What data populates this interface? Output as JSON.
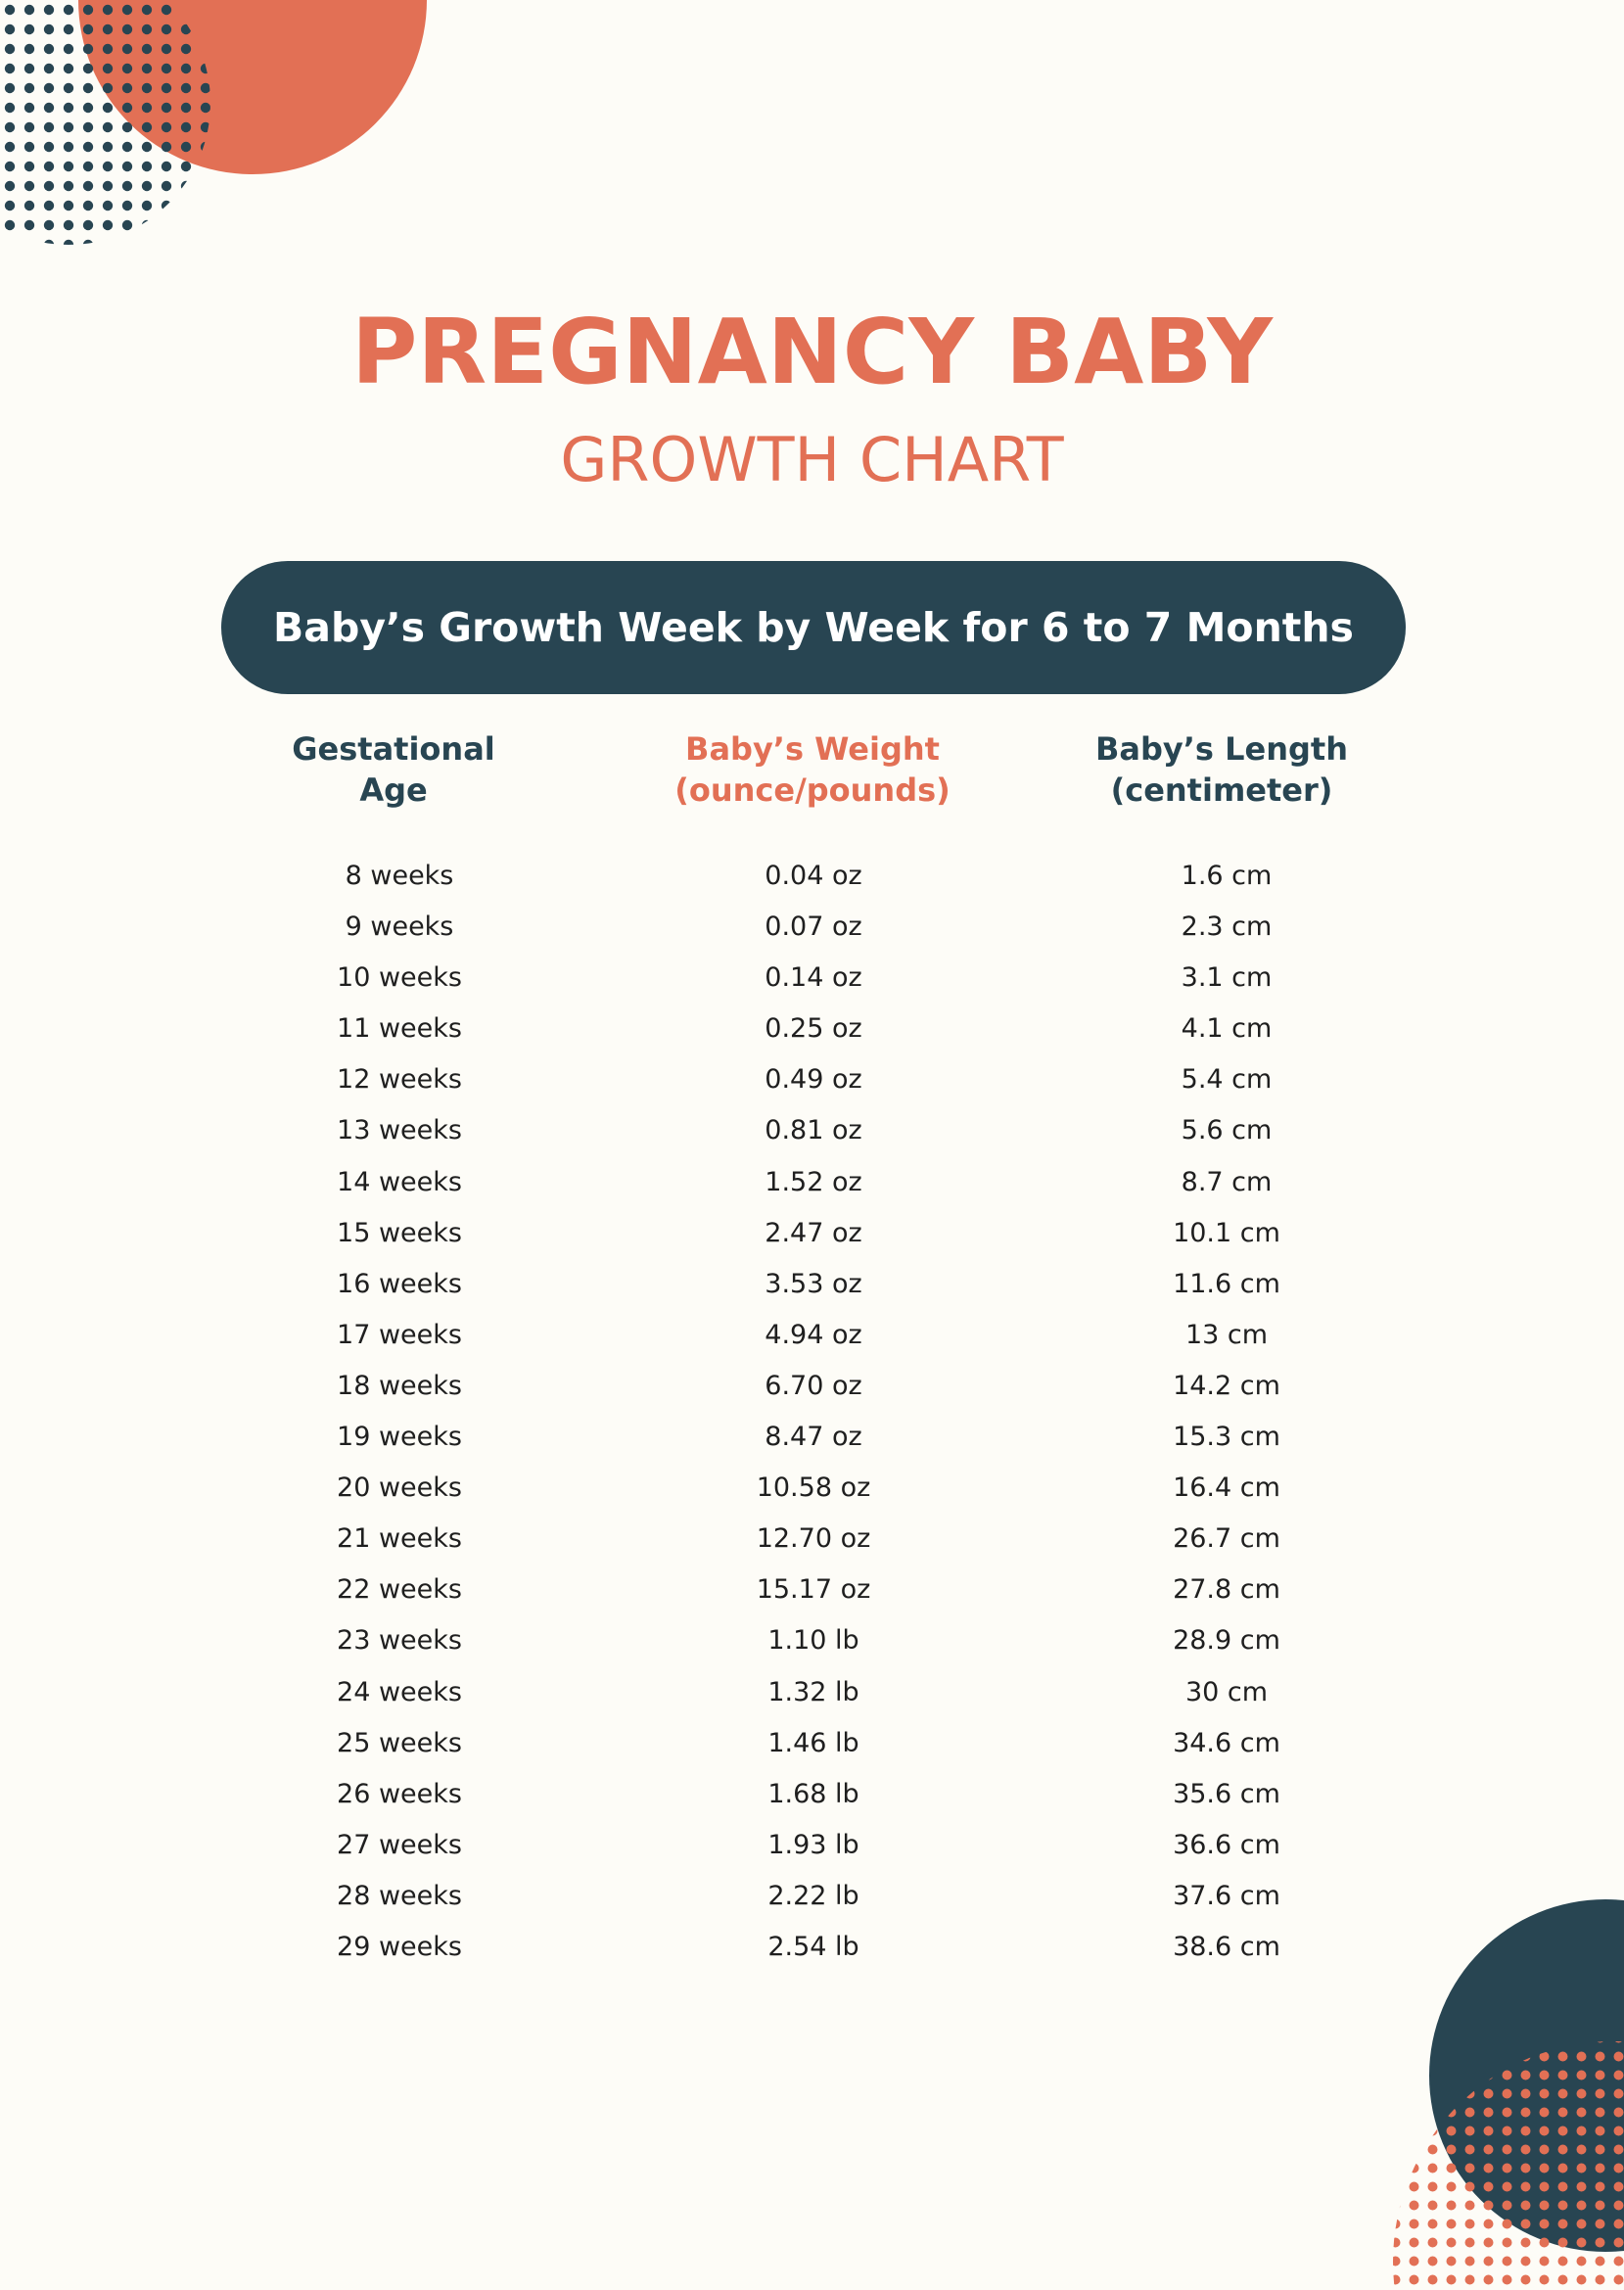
{
  "document": {
    "title": "PREGNANCY BABY",
    "subtitle": "GROWTH CHART",
    "banner": "Baby’s Growth Week by Week for 6 to 7 Months"
  },
  "colors": {
    "accent": "#e27055",
    "navy": "#284552",
    "background": "#fdfcf7"
  },
  "table": {
    "headers": [
      [
        "Gestational",
        "Age"
      ],
      [
        "Baby’s Weight",
        "(ounce/pounds)"
      ],
      [
        "Baby’s Length",
        "(centimeter)"
      ]
    ],
    "rows": [
      [
        "8 weeks",
        "0.04 oz",
        "1.6 cm"
      ],
      [
        "9 weeks",
        "0.07 oz",
        "2.3 cm"
      ],
      [
        "10 weeks",
        "0.14 oz",
        "3.1 cm"
      ],
      [
        "11 weeks",
        "0.25 oz",
        "4.1 cm"
      ],
      [
        "12 weeks",
        "0.49 oz",
        "5.4 cm"
      ],
      [
        "13 weeks",
        "0.81 oz",
        "5.6 cm"
      ],
      [
        "14 weeks",
        "1.52 oz",
        "8.7 cm"
      ],
      [
        "15 weeks",
        "2.47 oz",
        "10.1 cm"
      ],
      [
        "16 weeks",
        "3.53 oz",
        "11.6 cm"
      ],
      [
        "17 weeks",
        "4.94 oz",
        "13 cm"
      ],
      [
        "18 weeks",
        "6.70 oz",
        "14.2 cm"
      ],
      [
        "19 weeks",
        "8.47 oz",
        "15.3 cm"
      ],
      [
        "20 weeks",
        "10.58 oz",
        "16.4 cm"
      ],
      [
        "21 weeks",
        "12.70 oz",
        "26.7 cm"
      ],
      [
        "22 weeks",
        "15.17 oz",
        "27.8 cm"
      ],
      [
        "23 weeks",
        "1.10 lb",
        "28.9 cm"
      ],
      [
        "24 weeks",
        "1.32 lb",
        "30 cm"
      ],
      [
        "25 weeks",
        "1.46 lb",
        "34.6 cm"
      ],
      [
        "26 weeks",
        "1.68 lb",
        "35.6 cm"
      ],
      [
        "27 weeks",
        "1.93 lb",
        "36.6 cm"
      ],
      [
        "28 weeks",
        "2.22 lb",
        "37.6 cm"
      ],
      [
        "29 weeks",
        "2.54 lb",
        "38.6 cm"
      ]
    ]
  }
}
